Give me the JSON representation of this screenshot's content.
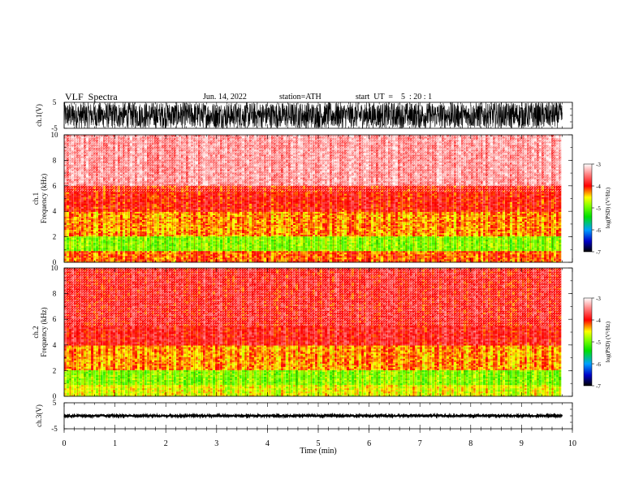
{
  "header": {
    "title": "VLF  Spectra",
    "date": "Jun. 14, 2022",
    "station": "station=ATH",
    "start": "start  UT  =    5  : 20 : 1"
  },
  "chart_data": [
    {
      "type": "line",
      "ylabel": "ch.1(V)",
      "ylim": [
        -5,
        5
      ],
      "yticks": [
        "5",
        "-5"
      ],
      "xlim": [
        0,
        10
      ],
      "data_end_min": 9.8,
      "description_values": {
        "amplitude_range": [
          -5,
          5
        ]
      }
    },
    {
      "type": "heatmap",
      "ylabel_line1": "ch.1",
      "ylabel_line2": "Frequency  (kHz)",
      "ylim": [
        0,
        10
      ],
      "yticks": [
        "0",
        "2",
        "4",
        "6",
        "8",
        "10"
      ],
      "xlim": [
        0,
        10
      ],
      "data_end_min": 9.8,
      "bands": [
        {
          "from_khz": 0,
          "to_khz": 0.9,
          "log_psd": -4.2
        },
        {
          "from_khz": 0.9,
          "to_khz": 2.0,
          "log_psd": -4.9
        },
        {
          "from_khz": 2.0,
          "to_khz": 4.0,
          "log_psd": -4.3
        },
        {
          "from_khz": 4.0,
          "to_khz": 6.0,
          "log_psd": -4.0
        },
        {
          "from_khz": 6.0,
          "to_khz": 10.0,
          "log_psd": -3.4
        }
      ],
      "colorbar": {
        "label": "log(PSD) (V²/Hz)",
        "range": [
          -7,
          -3
        ],
        "ticks": [
          "-3",
          "-4",
          "-5",
          "-6",
          "-7"
        ]
      }
    },
    {
      "type": "heatmap",
      "ylabel_line1": "ch.2",
      "ylabel_line2": "Frequency  (kHz)",
      "ylim": [
        0,
        10
      ],
      "yticks": [
        "0",
        "2",
        "4",
        "6",
        "8",
        "10"
      ],
      "xlim": [
        0,
        10
      ],
      "data_end_min": 9.8,
      "bands": [
        {
          "from_khz": 0,
          "to_khz": 0.9,
          "log_psd": -4.6
        },
        {
          "from_khz": 0.9,
          "to_khz": 2.0,
          "log_psd": -4.9
        },
        {
          "from_khz": 2.0,
          "to_khz": 4.0,
          "log_psd": -4.3
        },
        {
          "from_khz": 4.0,
          "to_khz": 10.0,
          "log_psd": -3.9
        }
      ],
      "colorbar": {
        "label": "log(PSD) (V²/Hz)",
        "range": [
          -7,
          -3
        ],
        "ticks": [
          "-3",
          "-4",
          "-5",
          "-6",
          "-7"
        ]
      }
    },
    {
      "type": "line",
      "ylabel": "ch.3(V)",
      "ylim": [
        -5,
        5
      ],
      "yticks": [
        "5",
        "-5"
      ],
      "xlim": [
        0,
        10
      ],
      "data_end_min": 9.8,
      "xlabel": "Time  (min)",
      "xticks": [
        "0",
        "1",
        "2",
        "3",
        "4",
        "5",
        "6",
        "7",
        "8",
        "9",
        "10"
      ],
      "description_values": {
        "amplitude_range": [
          -0.3,
          0.3
        ]
      }
    }
  ]
}
